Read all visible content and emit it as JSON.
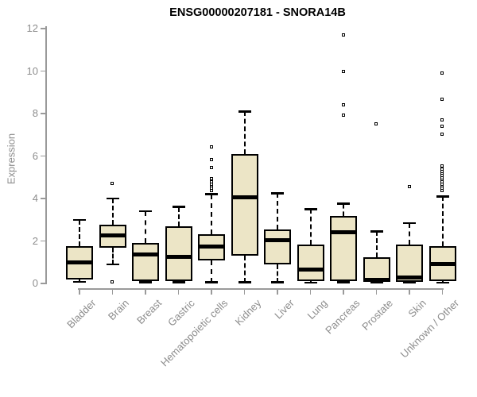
{
  "title": "ENSG00000207181 - SNORA14B",
  "y_axis": {
    "label": "Expression"
  },
  "colors": {
    "box_fill": "#ece5c6",
    "box_border": "#000000",
    "axis": "#9a9a9a",
    "label_text": "#8d8d8d",
    "title_text": "#000000"
  },
  "chart_data": {
    "type": "boxplot",
    "title": "ENSG00000207181 - SNORA14B",
    "xlabel": "",
    "ylabel": "Expression",
    "ylim": [
      0,
      12
    ],
    "yticks": [
      0,
      2,
      4,
      6,
      8,
      10,
      12
    ],
    "grid": false,
    "legend": false,
    "categories": [
      "Bladder",
      "Brain",
      "Breast",
      "Gastric",
      "Hematopoietic cells",
      "Kidney",
      "Liver",
      "Lung",
      "Pancreas",
      "Prostate",
      "Skin",
      "Unknown / Other"
    ],
    "series": [
      {
        "name": "Bladder",
        "whisker_low": 0.08,
        "q1": 0.2,
        "median": 1.0,
        "q3": 1.75,
        "whisker_high": 3.0,
        "outliers": []
      },
      {
        "name": "Brain",
        "whisker_low": 0.9,
        "q1": 1.7,
        "median": 2.25,
        "q3": 2.75,
        "whisker_high": 4.0,
        "outliers": [
          4.7,
          0.05
        ]
      },
      {
        "name": "Breast",
        "whisker_low": 0.05,
        "q1": 0.12,
        "median": 1.35,
        "q3": 1.9,
        "whisker_high": 3.4,
        "outliers": []
      },
      {
        "name": "Gastric",
        "whisker_low": 0.05,
        "q1": 0.12,
        "median": 1.25,
        "q3": 2.7,
        "whisker_high": 3.6,
        "outliers": []
      },
      {
        "name": "Hematopoietic cells",
        "whisker_low": 0.05,
        "q1": 1.1,
        "median": 1.72,
        "q3": 2.32,
        "whisker_high": 4.2,
        "outliers": [
          6.4,
          5.8,
          5.45,
          4.9,
          4.75,
          4.65,
          4.55,
          4.45,
          4.35
        ]
      },
      {
        "name": "Kidney",
        "whisker_low": 0.05,
        "q1": 1.3,
        "median": 4.05,
        "q3": 6.1,
        "whisker_high": 8.1,
        "outliers": []
      },
      {
        "name": "Liver",
        "whisker_low": 0.05,
        "q1": 0.9,
        "median": 2.05,
        "q3": 2.55,
        "whisker_high": 4.25,
        "outliers": []
      },
      {
        "name": "Lung",
        "whisker_low": 0.04,
        "q1": 0.1,
        "median": 0.65,
        "q3": 1.85,
        "whisker_high": 3.5,
        "outliers": []
      },
      {
        "name": "Pancreas",
        "whisker_low": 0.05,
        "q1": 0.12,
        "median": 2.4,
        "q3": 3.18,
        "whisker_high": 3.75,
        "outliers": [
          11.7,
          9.95,
          8.4,
          7.9
        ]
      },
      {
        "name": "Prostate",
        "whisker_low": 0.03,
        "q1": 0.08,
        "median": 0.15,
        "q3": 1.25,
        "whisker_high": 2.45,
        "outliers": [
          7.5
        ]
      },
      {
        "name": "Skin",
        "whisker_low": 0.03,
        "q1": 0.08,
        "median": 0.27,
        "q3": 1.85,
        "whisker_high": 2.85,
        "outliers": [
          4.55
        ]
      },
      {
        "name": "Unknown / Other",
        "whisker_low": 0.04,
        "q1": 0.12,
        "median": 0.9,
        "q3": 1.75,
        "whisker_high": 4.1,
        "outliers": [
          9.9,
          8.65,
          7.7,
          7.4,
          7.0,
          5.5,
          5.35,
          5.25,
          5.15,
          5.05,
          4.95,
          4.85,
          4.75,
          4.65,
          4.55,
          4.45,
          4.35
        ]
      }
    ]
  }
}
